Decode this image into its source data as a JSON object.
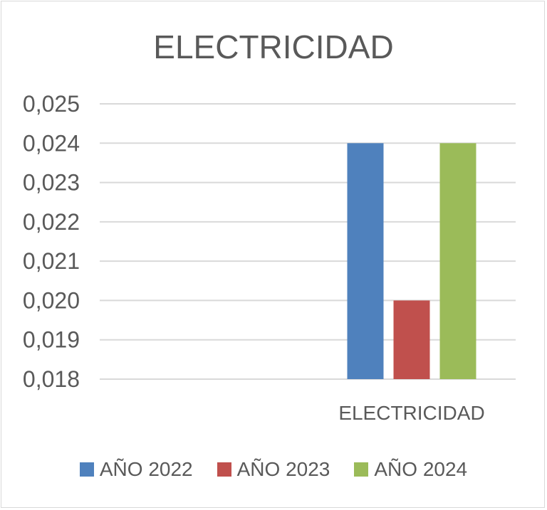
{
  "chart_data": {
    "type": "bar",
    "title": "ELECTRICIDAD",
    "categories": [
      "",
      "ELECTRICIDAD"
    ],
    "series": [
      {
        "name": "AÑO 2022",
        "color": "#4f81bd",
        "values": [
          null,
          0.024
        ]
      },
      {
        "name": "AÑO 2023",
        "color": "#c0504d",
        "values": [
          null,
          0.02
        ]
      },
      {
        "name": "AÑO 2024",
        "color": "#9bbb59",
        "values": [
          null,
          0.024
        ]
      }
    ],
    "ylim": [
      0.018,
      0.025
    ],
    "yticks": [
      "0,025",
      "0,024",
      "0,023",
      "0,022",
      "0,021",
      "0,020",
      "0,019",
      "0,018"
    ],
    "ytick_values": [
      0.025,
      0.024,
      0.023,
      0.022,
      0.021,
      0.02,
      0.019,
      0.018
    ],
    "xlabel": "",
    "ylabel": "",
    "grid": true,
    "legend": "bottom",
    "colors": {
      "text": "#595959",
      "grid": "#d9d9d9"
    }
  }
}
